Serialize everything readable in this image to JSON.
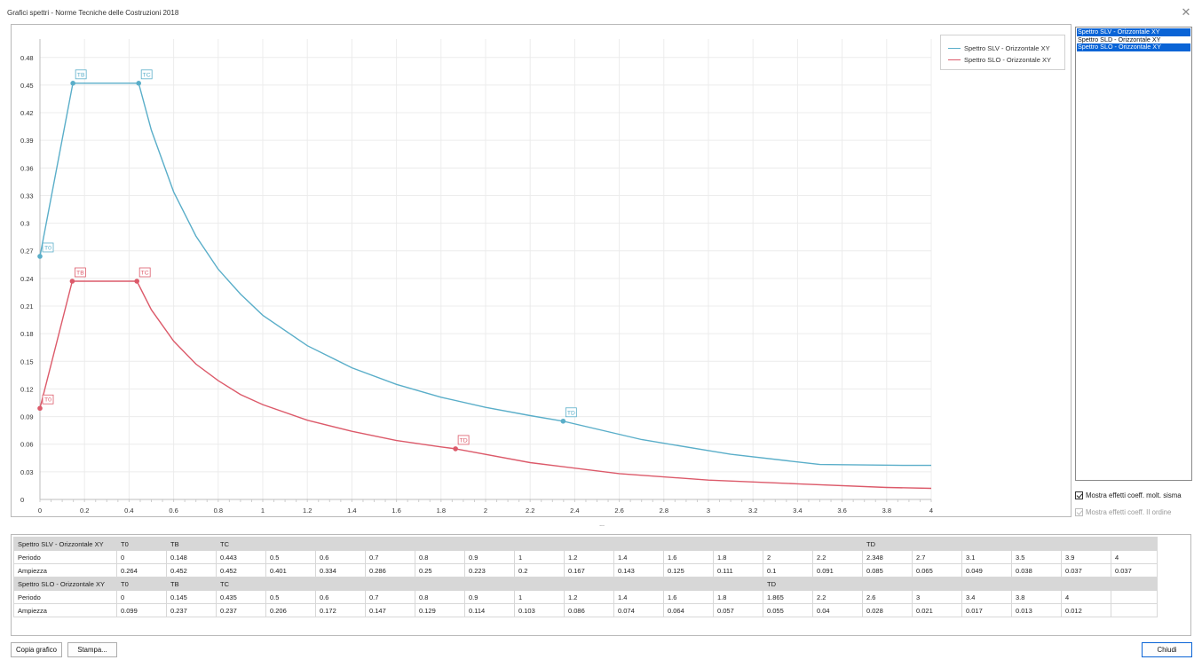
{
  "window": {
    "title": "Grafici spettri - Norme Tecniche delle Costruzioni 2018",
    "close_glyph": "✕"
  },
  "colors": {
    "slv": "#5aaec9",
    "slo": "#dc5a6a",
    "selection": "#0a64d6"
  },
  "legend": {
    "items": [
      {
        "label": "Spettro SLV - Orizzontale XY",
        "color": "#5aaec9"
      },
      {
        "label": "Spettro SLO - Orizzontale XY",
        "color": "#dc5a6a"
      }
    ]
  },
  "series_list": {
    "items": [
      {
        "label": "Spettro SLV - Orizzontale XY",
        "selected": true
      },
      {
        "label": "Spettro SLD - Orizzontale XY",
        "selected": false
      },
      {
        "label": "Spettro SLO - Orizzontale XY",
        "selected": true
      }
    ]
  },
  "options": {
    "molt_sisma": {
      "label": "Mostra effetti coeff. molt. sisma",
      "checked": true,
      "enabled": true
    },
    "ii_ordine": {
      "label": "Mostra effetti coeff. II ordine",
      "checked": true,
      "enabled": false
    }
  },
  "splitter": {
    "glyph": "..."
  },
  "chart_data": {
    "type": "line",
    "xlim": [
      0,
      4
    ],
    "ylim": [
      0,
      0.5
    ],
    "x_ticks": [
      "0",
      "0.2",
      "0.4",
      "0.6",
      "0.8",
      "1",
      "1.2",
      "1.4",
      "1.6",
      "1.8",
      "2",
      "2.2",
      "2.4",
      "2.6",
      "2.8",
      "3",
      "3.2",
      "3.4",
      "3.6",
      "3.8",
      "4"
    ],
    "y_ticks": [
      "0",
      "0.03",
      "0.06",
      "0.09",
      "0.12",
      "0.15",
      "0.18",
      "0.21",
      "0.24",
      "0.27",
      "0.3",
      "0.33",
      "0.36",
      "0.39",
      "0.42",
      "0.45",
      "0.48"
    ],
    "grid": true,
    "legend_position": "top-right",
    "series": [
      {
        "name": "Spettro SLV - Orizzontale XY",
        "color": "#5aaec9",
        "x": [
          0,
          0.148,
          0.443,
          0.5,
          0.6,
          0.7,
          0.8,
          0.9,
          1,
          1.2,
          1.4,
          1.6,
          1.8,
          2,
          2.2,
          2.348,
          2.7,
          3.1,
          3.5,
          3.9,
          4
        ],
        "y": [
          0.264,
          0.452,
          0.452,
          0.401,
          0.334,
          0.286,
          0.25,
          0.223,
          0.2,
          0.167,
          0.143,
          0.125,
          0.111,
          0.1,
          0.091,
          0.085,
          0.065,
          0.049,
          0.038,
          0.037,
          0.037
        ],
        "markers": [
          {
            "label": "T0",
            "x": 0,
            "y": 0.264
          },
          {
            "label": "TB",
            "x": 0.148,
            "y": 0.452
          },
          {
            "label": "TC",
            "x": 0.443,
            "y": 0.452
          },
          {
            "label": "TD",
            "x": 2.348,
            "y": 0.085
          }
        ]
      },
      {
        "name": "Spettro SLO - Orizzontale XY",
        "color": "#dc5a6a",
        "x": [
          0,
          0.145,
          0.435,
          0.5,
          0.6,
          0.7,
          0.8,
          0.9,
          1,
          1.2,
          1.4,
          1.6,
          1.8,
          1.865,
          2.2,
          2.6,
          3,
          3.4,
          3.8,
          4
        ],
        "y": [
          0.099,
          0.237,
          0.237,
          0.206,
          0.172,
          0.147,
          0.129,
          0.114,
          0.103,
          0.086,
          0.074,
          0.064,
          0.057,
          0.055,
          0.04,
          0.028,
          0.021,
          0.017,
          0.013,
          0.012
        ],
        "markers": [
          {
            "label": "T0",
            "x": 0,
            "y": 0.099
          },
          {
            "label": "TB",
            "x": 0.145,
            "y": 0.237
          },
          {
            "label": "TC",
            "x": 0.435,
            "y": 0.237
          },
          {
            "label": "TD",
            "x": 1.865,
            "y": 0.055
          }
        ]
      }
    ]
  },
  "table": {
    "rows": [
      {
        "kind": "hdr",
        "cells": [
          "Spettro SLV - Orizzontale XY",
          "T0",
          "TB",
          "TC",
          "",
          "",
          "",
          "",
          "",
          "",
          "",
          "",
          "",
          "",
          "",
          "",
          "TD",
          "",
          "",
          "",
          "",
          ""
        ]
      },
      {
        "kind": "row",
        "cells": [
          "Periodo",
          "0",
          "0.148",
          "0.443",
          "0.5",
          "0.6",
          "0.7",
          "0.8",
          "0.9",
          "1",
          "1.2",
          "1.4",
          "1.6",
          "1.8",
          "2",
          "2.2",
          "2.348",
          "2.7",
          "3.1",
          "3.5",
          "3.9",
          "4"
        ]
      },
      {
        "kind": "row",
        "cells": [
          "Ampiezza",
          "0.264",
          "0.452",
          "0.452",
          "0.401",
          "0.334",
          "0.286",
          "0.25",
          "0.223",
          "0.2",
          "0.167",
          "0.143",
          "0.125",
          "0.111",
          "0.1",
          "0.091",
          "0.085",
          "0.065",
          "0.049",
          "0.038",
          "0.037",
          "0.037"
        ]
      },
      {
        "kind": "hdr",
        "cells": [
          "Spettro SLO - Orizzontale XY",
          "T0",
          "TB",
          "TC",
          "",
          "",
          "",
          "",
          "",
          "",
          "",
          "",
          "",
          "",
          "TD",
          "",
          "",
          "",
          "",
          "",
          "",
          ""
        ]
      },
      {
        "kind": "row",
        "cells": [
          "Periodo",
          "0",
          "0.145",
          "0.435",
          "0.5",
          "0.6",
          "0.7",
          "0.8",
          "0.9",
          "1",
          "1.2",
          "1.4",
          "1.6",
          "1.8",
          "1.865",
          "2.2",
          "2.6",
          "3",
          "3.4",
          "3.8",
          "4",
          ""
        ]
      },
      {
        "kind": "row",
        "cells": [
          "Ampiezza",
          "0.099",
          "0.237",
          "0.237",
          "0.206",
          "0.172",
          "0.147",
          "0.129",
          "0.114",
          "0.103",
          "0.086",
          "0.074",
          "0.064",
          "0.057",
          "0.055",
          "0.04",
          "0.028",
          "0.021",
          "0.017",
          "0.013",
          "0.012",
          ""
        ]
      }
    ]
  },
  "buttons": {
    "copy": "Copia grafico",
    "print": "Stampa...",
    "close": "Chiudi"
  }
}
